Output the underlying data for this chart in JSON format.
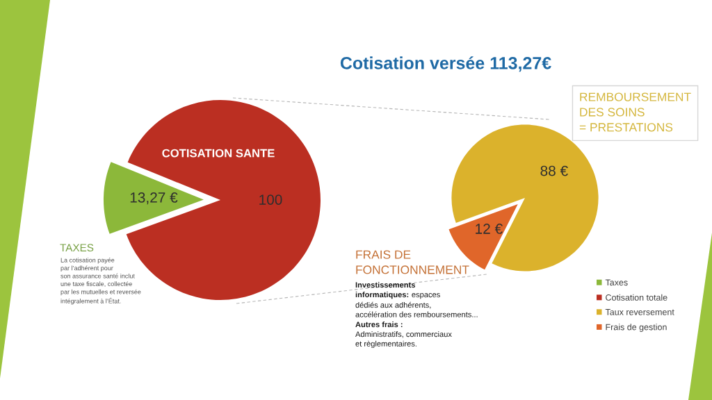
{
  "chart_data": [
    {
      "type": "pie",
      "title": "Cotisation versée 113,27€",
      "categories": [
        "Taxes",
        "Cotisation totale"
      ],
      "values": [
        13.27,
        100
      ],
      "value_labels": [
        "13,27 €",
        "100"
      ],
      "colors": [
        "#8cb83a",
        "#bb2f22"
      ],
      "legend": "right",
      "annotations": [
        "COTISATION SANTE",
        "TAXES",
        "La cotisation payée\npar l’adhérent pour\nson assurance santé inclut\nune taxe fiscale, collectée\npar les mutuelles et reversée\nintégralement à l’État."
      ]
    },
    {
      "type": "pie",
      "categories": [
        "Taux reversement",
        "Frais de gestion"
      ],
      "values": [
        88,
        12
      ],
      "value_labels": [
        "88 €",
        "12 €"
      ],
      "colors": [
        "#dbb22c",
        "#e0662a"
      ],
      "legend": "right",
      "annotations": [
        "REMBOURSEMENT\nDES SOINS\n= PRESTATIONS",
        "FRAIS DE\nFONCTIONNEMENT",
        "Investissements",
        "informatiques:",
        "espaces",
        "dédiés aux adhérents,\naccélération des remboursements...",
        "Autres frais :",
        "Administratifs, commerciaux\net règlementaires."
      ]
    }
  ]
}
